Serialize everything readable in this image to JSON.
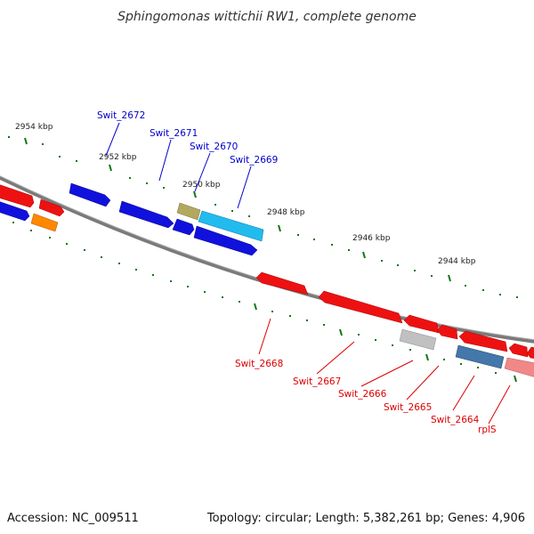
{
  "title": "Sphingomonas wittichii RW1, complete genome",
  "footer": {
    "accession": "Accession: NC_009511",
    "summary": "Topology: circular; Length: 5,382,261 bp; Genes: 4,906"
  },
  "ticks": [
    "2954 kbp",
    "2952 kbp",
    "2950 kbp",
    "2948 kbp",
    "2946 kbp",
    "2944 kbp"
  ],
  "gene_labels": {
    "top": [
      "Swit_2672",
      "Swit_2671",
      "Swit_2670",
      "Swit_2669"
    ],
    "bottom": [
      "Swit_2668",
      "Swit_2667",
      "Swit_2666",
      "Swit_2665",
      "Swit_2664",
      "rplS"
    ]
  },
  "colors": {
    "forward_label": "#0000cc",
    "reverse_label": "#dd0000",
    "backbone": "#808080",
    "tick": "#117711"
  }
}
